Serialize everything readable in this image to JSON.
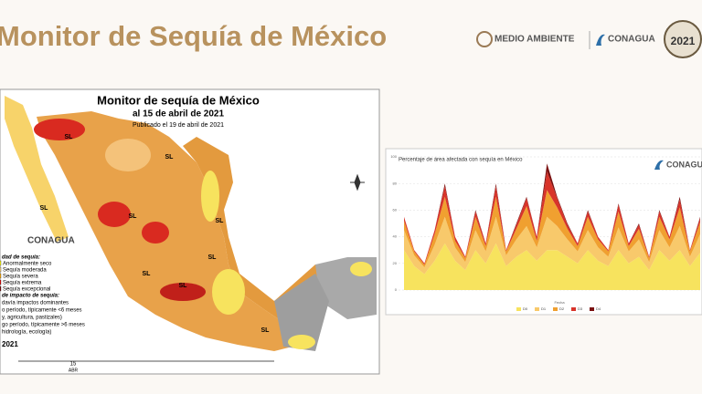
{
  "header": {
    "title": "Monitor de Sequía de México",
    "logos": [
      "MEDIO AMBIENTE",
      "CONAGUA",
      "2021"
    ]
  },
  "map": {
    "title": "Monitor de sequía de México",
    "date": "al 15 de abril de 2021",
    "published": "Publicado el 19 de abril de 2021",
    "region_labels": [
      "SL",
      "SL",
      "SL",
      "SL",
      "SL",
      "SL",
      "SL",
      "SL",
      "SL"
    ],
    "logo": "CONAGUA",
    "intensity_title": "dad de sequía:",
    "legend": [
      {
        "label": "Anormalmente seco",
        "color": "#ffff00"
      },
      {
        "label": "Sequía moderada",
        "color": "#fcd37f"
      },
      {
        "label": "Sequía severa",
        "color": "#ffaa00"
      },
      {
        "label": "Sequía extrema",
        "color": "#e60000"
      },
      {
        "label": "Sequía excepcional",
        "color": "#730000"
      }
    ],
    "impact_title": "de impacto de sequía:",
    "impacts": [
      "davía impactos dominantes",
      "o período, típicamente <6 meses",
      "y, agricultura, pastizales)",
      "go período, típicamente >6 meses",
      "hidrología, ecología)"
    ],
    "year": "2021",
    "day": "15",
    "month": "ABR"
  },
  "chart": {
    "type": "area",
    "title": "Percentaje de área afectada con sequía en México",
    "logo": "CONAGUA",
    "x_label": "Fecha",
    "ylim": [
      0,
      100
    ],
    "yticks": [
      0,
      20,
      40,
      60,
      80,
      100
    ],
    "categories": [
      null,
      null,
      null,
      null,
      null,
      null,
      null,
      null,
      null,
      null,
      null,
      null,
      null,
      null,
      null,
      null,
      null,
      null,
      null,
      null,
      null,
      null,
      null,
      null,
      null,
      null,
      null,
      null,
      null,
      null
    ],
    "series": [
      {
        "name": "D0",
        "color": "#f7e35e",
        "values": [
          30,
          18,
          12,
          22,
          35,
          22,
          15,
          30,
          20,
          35,
          18,
          25,
          30,
          22,
          30,
          30,
          25,
          20,
          30,
          22,
          18,
          30,
          20,
          25,
          15,
          30,
          22,
          30,
          18,
          28
        ]
      },
      {
        "name": "D1",
        "color": "#f8c96b",
        "values": [
          15,
          8,
          5,
          12,
          20,
          10,
          6,
          15,
          9,
          20,
          8,
          13,
          18,
          10,
          25,
          18,
          13,
          9,
          15,
          10,
          7,
          17,
          9,
          13,
          6,
          15,
          10,
          18,
          7,
          14
        ]
      },
      {
        "name": "D2",
        "color": "#f0a030",
        "values": [
          7,
          3,
          2,
          8,
          15,
          5,
          3,
          10,
          4,
          15,
          3,
          8,
          15,
          5,
          20,
          14,
          8,
          4,
          10,
          6,
          4,
          12,
          4,
          8,
          3,
          10,
          6,
          14,
          4,
          9
        ]
      },
      {
        "name": "D3",
        "color": "#d8342a",
        "values": [
          3,
          1,
          1,
          3,
          8,
          3,
          1,
          4,
          2,
          8,
          1,
          3,
          6,
          3,
          14,
          7,
          3,
          2,
          4,
          2,
          1,
          5,
          2,
          3,
          1,
          4,
          2,
          6,
          1,
          3
        ]
      },
      {
        "name": "D4",
        "color": "#7a1010",
        "values": [
          0,
          0,
          0,
          0,
          2,
          0,
          0,
          1,
          0,
          2,
          0,
          1,
          1,
          0,
          6,
          1,
          1,
          0,
          1,
          0,
          0,
          1,
          0,
          1,
          0,
          1,
          0,
          2,
          0,
          1
        ]
      }
    ]
  }
}
